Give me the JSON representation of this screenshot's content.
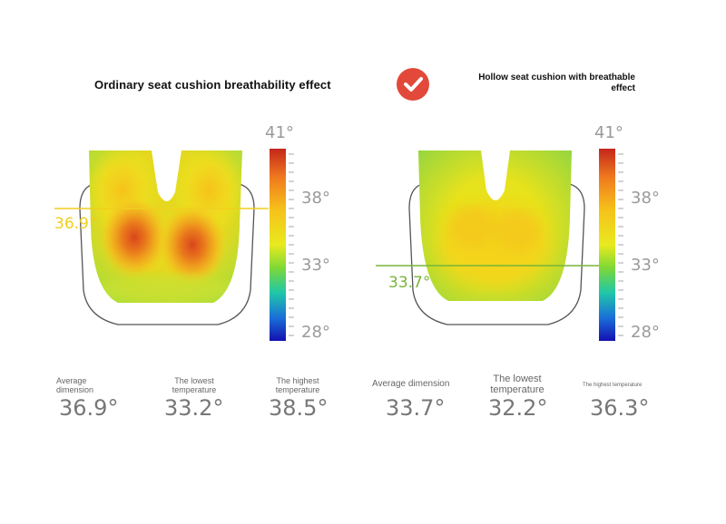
{
  "left_panel": {
    "title": "Ordinary seat cushion breathability effect",
    "marker_value": "36.9°",
    "scale_labels": [
      "41°",
      "38°",
      "33°",
      "28°"
    ],
    "stats": [
      {
        "label": "Average dimension",
        "value": "36.9°"
      },
      {
        "label": "The lowest temperature",
        "value": "33.2°"
      },
      {
        "label": "The highest temperature",
        "value": "38.5°"
      }
    ]
  },
  "right_panel": {
    "title": "Hollow seat cushion with breathable effect",
    "marker_value": "33.7°",
    "scale_labels": [
      "41°",
      "38°",
      "33°",
      "28°"
    ],
    "stats": [
      {
        "label": "Average dimension",
        "value": "33.7°"
      },
      {
        "label": "The lowest temperature",
        "value": "32.2°"
      },
      {
        "label": "The highest temperature",
        "value": "36.3°"
      }
    ]
  },
  "icons": {
    "check": "check-badge-icon"
  },
  "colors": {
    "accent_red": "#e2493a",
    "marker_yellow": "#f0cf1e",
    "marker_green": "#78b53a"
  }
}
